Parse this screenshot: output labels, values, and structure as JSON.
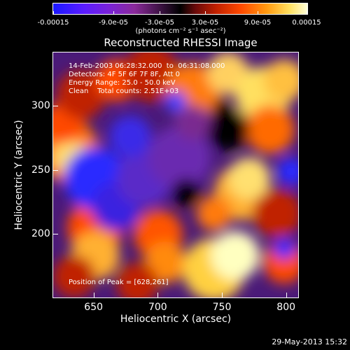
{
  "colorbar": {
    "ticks": [
      "-0.00015",
      "-9.0e-05",
      "-3.0e-05",
      "3.0e-05",
      "9.0e-05",
      "0.00015"
    ],
    "unit_label": "(photons cm⁻² s⁻¹ asec⁻²)",
    "range": [
      -0.00015,
      0.00015
    ],
    "colors": [
      "#1a18ff",
      "#7a22d8",
      "#000000",
      "#c02000",
      "#ff9a10",
      "#ffffd8"
    ]
  },
  "chart_data": {
    "type": "heatmap",
    "title": "Reconstructed RHESSI Image",
    "xlabel": "Heliocentric X (arcsec)",
    "ylabel": "Heliocentric Y (arcsec)",
    "xlim": [
      618,
      810
    ],
    "ylim": [
      150,
      342
    ],
    "xticks": [
      "650",
      "700",
      "750",
      "800"
    ],
    "yticks": [
      "200",
      "250",
      "300"
    ],
    "annotations": {
      "time": "14-Feb-2003 06:28:32.000  to  06:31:08.000",
      "detectors": "Detectors: 4F 5F 6F 7F 8F, Att 0",
      "energy": "Energy Range: 25.0 - 50.0 keV",
      "clean": "Clean    Total counts: 2.51E+03",
      "peak": "Position of Peak = [628,261]"
    },
    "peak_position": [
      628,
      261
    ]
  },
  "footer": {
    "timestamp": "29-May-2013 15:32"
  }
}
